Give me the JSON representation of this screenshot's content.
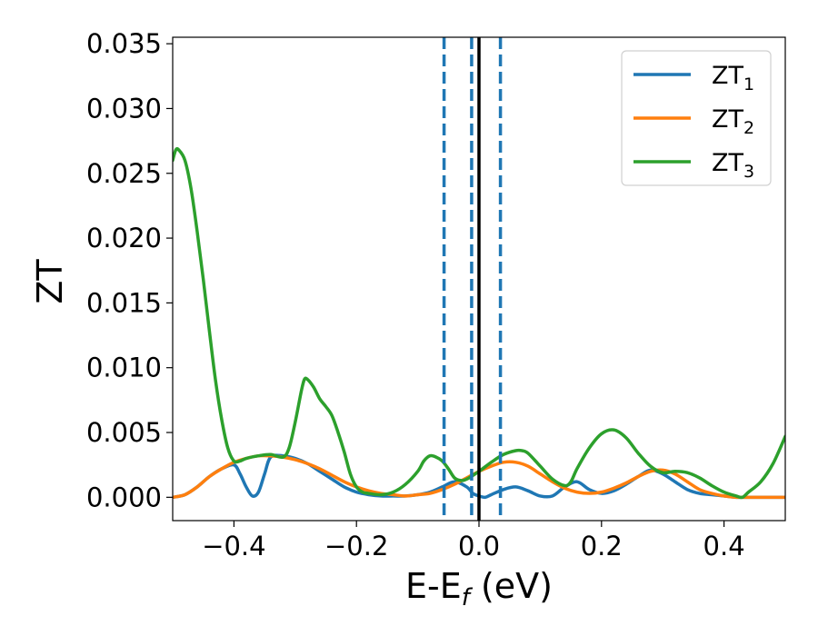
{
  "chart_data": {
    "type": "line",
    "title": "",
    "xlabel": {
      "main": "E-E",
      "sub": "f",
      "suffix": " (eV)"
    },
    "ylabel": "ZT",
    "xlim": [
      -0.5,
      0.5
    ],
    "ylim": [
      -0.0018,
      0.0355
    ],
    "x_ticks": [
      -0.4,
      -0.2,
      0.0,
      0.2,
      0.4
    ],
    "x_tick_labels": [
      "−0.4",
      "−0.2",
      "0.0",
      "0.2",
      "0.4"
    ],
    "y_ticks": [
      0.0,
      0.005,
      0.01,
      0.015,
      0.02,
      0.025,
      0.03,
      0.035
    ],
    "y_tick_labels": [
      "0.000",
      "0.005",
      "0.010",
      "0.015",
      "0.020",
      "0.025",
      "0.030",
      "0.035"
    ],
    "grid": false,
    "legend_position": "top-right",
    "series": [
      {
        "name": "ZT",
        "subscript": "1",
        "color": "#1f77b4",
        "x": [
          -0.5,
          -0.48,
          -0.46,
          -0.44,
          -0.42,
          -0.4,
          -0.39,
          -0.38,
          -0.37,
          -0.36,
          -0.35,
          -0.34,
          -0.32,
          -0.3,
          -0.28,
          -0.26,
          -0.24,
          -0.22,
          -0.2,
          -0.18,
          -0.16,
          -0.14,
          -0.12,
          -0.1,
          -0.08,
          -0.06,
          -0.04,
          -0.02,
          -0.01,
          0.0,
          0.01,
          0.02,
          0.04,
          0.06,
          0.08,
          0.1,
          0.12,
          0.14,
          0.16,
          0.18,
          0.2,
          0.22,
          0.24,
          0.26,
          0.28,
          0.3,
          0.32,
          0.34,
          0.36,
          0.38,
          0.4,
          0.42,
          0.44,
          0.46,
          0.48,
          0.5
        ],
        "y": [
          0.0,
          0.0002,
          0.0008,
          0.0016,
          0.0022,
          0.0025,
          0.0018,
          0.0008,
          0.0001,
          0.0004,
          0.0018,
          0.0031,
          0.0032,
          0.003,
          0.0026,
          0.002,
          0.0014,
          0.0008,
          0.0004,
          0.0002,
          0.0001,
          0.0001,
          0.0001,
          0.0002,
          0.0004,
          0.0008,
          0.0012,
          0.0008,
          0.0003,
          0.0001,
          0.0,
          0.0002,
          0.0006,
          0.0008,
          0.0005,
          0.0001,
          0.0001,
          0.0008,
          0.0012,
          0.0006,
          0.0003,
          0.0005,
          0.001,
          0.0016,
          0.0021,
          0.0018,
          0.0012,
          0.0006,
          0.0003,
          0.0002,
          0.0001,
          0.0,
          0.0,
          0.0,
          0.0,
          0.0
        ]
      },
      {
        "name": "ZT",
        "subscript": "2",
        "color": "#ff7f0e",
        "x": [
          -0.5,
          -0.48,
          -0.46,
          -0.44,
          -0.42,
          -0.4,
          -0.38,
          -0.36,
          -0.34,
          -0.32,
          -0.3,
          -0.28,
          -0.26,
          -0.24,
          -0.22,
          -0.2,
          -0.18,
          -0.16,
          -0.14,
          -0.12,
          -0.1,
          -0.08,
          -0.06,
          -0.04,
          -0.02,
          0.0,
          0.02,
          0.04,
          0.06,
          0.08,
          0.1,
          0.12,
          0.14,
          0.16,
          0.18,
          0.2,
          0.22,
          0.24,
          0.26,
          0.28,
          0.3,
          0.32,
          0.34,
          0.36,
          0.38,
          0.4,
          0.42,
          0.44,
          0.46,
          0.48,
          0.5
        ],
        "y": [
          0.0,
          0.0002,
          0.0008,
          0.0016,
          0.0022,
          0.0027,
          0.003,
          0.0032,
          0.0032,
          0.0031,
          0.0029,
          0.0026,
          0.0022,
          0.0017,
          0.0012,
          0.0008,
          0.0005,
          0.0003,
          0.0002,
          0.0001,
          0.0002,
          0.0003,
          0.0006,
          0.001,
          0.0015,
          0.002,
          0.0024,
          0.0027,
          0.0027,
          0.0024,
          0.0018,
          0.0012,
          0.0007,
          0.0004,
          0.0003,
          0.0004,
          0.0007,
          0.0011,
          0.0016,
          0.002,
          0.0021,
          0.0018,
          0.0012,
          0.0006,
          0.0003,
          0.0001,
          0.0,
          0.0,
          0.0,
          0.0,
          0.0
        ]
      },
      {
        "name": "ZT",
        "subscript": "3",
        "color": "#2ca02c",
        "x": [
          -0.5,
          -0.495,
          -0.49,
          -0.48,
          -0.47,
          -0.46,
          -0.45,
          -0.44,
          -0.43,
          -0.42,
          -0.41,
          -0.4,
          -0.39,
          -0.38,
          -0.36,
          -0.34,
          -0.32,
          -0.31,
          -0.3,
          -0.29,
          -0.285,
          -0.28,
          -0.27,
          -0.26,
          -0.25,
          -0.24,
          -0.23,
          -0.22,
          -0.21,
          -0.2,
          -0.19,
          -0.18,
          -0.16,
          -0.14,
          -0.12,
          -0.1,
          -0.09,
          -0.08,
          -0.07,
          -0.06,
          -0.05,
          -0.04,
          -0.03,
          -0.02,
          0.0,
          0.02,
          0.04,
          0.06,
          0.07,
          0.08,
          0.1,
          0.12,
          0.14,
          0.15,
          0.16,
          0.18,
          0.2,
          0.22,
          0.24,
          0.26,
          0.28,
          0.3,
          0.32,
          0.34,
          0.36,
          0.38,
          0.4,
          0.42,
          0.43,
          0.44,
          0.46,
          0.48,
          0.5
        ],
        "y": [
          0.026,
          0.0268,
          0.0268,
          0.026,
          0.0238,
          0.0205,
          0.0168,
          0.0128,
          0.009,
          0.006,
          0.0038,
          0.0028,
          0.0028,
          0.003,
          0.0032,
          0.0033,
          0.0031,
          0.0038,
          0.0058,
          0.0082,
          0.0091,
          0.0091,
          0.0085,
          0.0076,
          0.007,
          0.0063,
          0.005,
          0.0035,
          0.0018,
          0.0008,
          0.0004,
          0.0003,
          0.0002,
          0.0004,
          0.001,
          0.002,
          0.0028,
          0.0032,
          0.0031,
          0.0028,
          0.0022,
          0.0015,
          0.0013,
          0.0014,
          0.002,
          0.0027,
          0.0033,
          0.0036,
          0.0036,
          0.0034,
          0.0024,
          0.0014,
          0.0009,
          0.0012,
          0.0022,
          0.0038,
          0.0049,
          0.0052,
          0.0046,
          0.0034,
          0.0024,
          0.0019,
          0.002,
          0.0019,
          0.0015,
          0.0009,
          0.0004,
          0.0001,
          0.0,
          0.0004,
          0.0012,
          0.0026,
          0.0047
        ]
      }
    ],
    "vertical_lines": [
      {
        "x": -0.057,
        "style": "dashed",
        "color": "#1f77b4"
      },
      {
        "x": -0.012,
        "style": "dashed",
        "color": "#1f77b4"
      },
      {
        "x": 0.0,
        "style": "solid",
        "color": "#000000"
      },
      {
        "x": 0.035,
        "style": "dashed",
        "color": "#1f77b4"
      }
    ]
  }
}
